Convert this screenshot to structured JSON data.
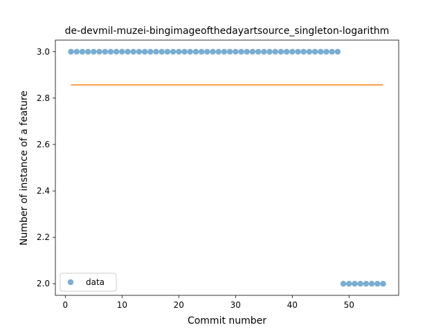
{
  "chart_data": {
    "type": "scatter",
    "title": "de-devmil-muzei-bingimageofthedayartsource_singleton-logarithm",
    "xlabel": "Commit number",
    "ylabel": "Number of instance of a feature",
    "xlim": [
      -1.75,
      58.75
    ],
    "ylim": [
      1.95,
      3.05
    ],
    "xticks": [
      0,
      10,
      20,
      30,
      40,
      50
    ],
    "yticks": [
      2.0,
      2.2,
      2.4,
      2.6,
      2.8,
      3.0
    ],
    "xtick_labels": [
      "0",
      "10",
      "20",
      "30",
      "40",
      "50"
    ],
    "ytick_labels": [
      "2.0",
      "2.2",
      "2.4",
      "2.6",
      "2.8",
      "3.0"
    ],
    "grid": false,
    "legend_position": "lower-left",
    "series": [
      {
        "name": "data",
        "kind": "scatter",
        "color": "#1f77b4",
        "x": [
          1,
          2,
          3,
          4,
          5,
          6,
          7,
          8,
          9,
          10,
          11,
          12,
          13,
          14,
          15,
          16,
          17,
          18,
          19,
          20,
          21,
          22,
          23,
          24,
          25,
          26,
          27,
          28,
          29,
          30,
          31,
          32,
          33,
          34,
          35,
          36,
          37,
          38,
          39,
          40,
          41,
          42,
          43,
          44,
          45,
          46,
          47,
          48,
          49,
          50,
          51,
          52,
          53,
          54,
          55,
          56
        ],
        "y": [
          3,
          3,
          3,
          3,
          3,
          3,
          3,
          3,
          3,
          3,
          3,
          3,
          3,
          3,
          3,
          3,
          3,
          3,
          3,
          3,
          3,
          3,
          3,
          3,
          3,
          3,
          3,
          3,
          3,
          3,
          3,
          3,
          3,
          3,
          3,
          3,
          3,
          3,
          3,
          3,
          3,
          3,
          3,
          3,
          3,
          3,
          3,
          3,
          2,
          2,
          2,
          2,
          2,
          2,
          2,
          2
        ]
      },
      {
        "kind": "line",
        "color": "#ff7f0e",
        "x": [
          1,
          56
        ],
        "y": [
          2.857,
          2.857
        ]
      }
    ]
  }
}
